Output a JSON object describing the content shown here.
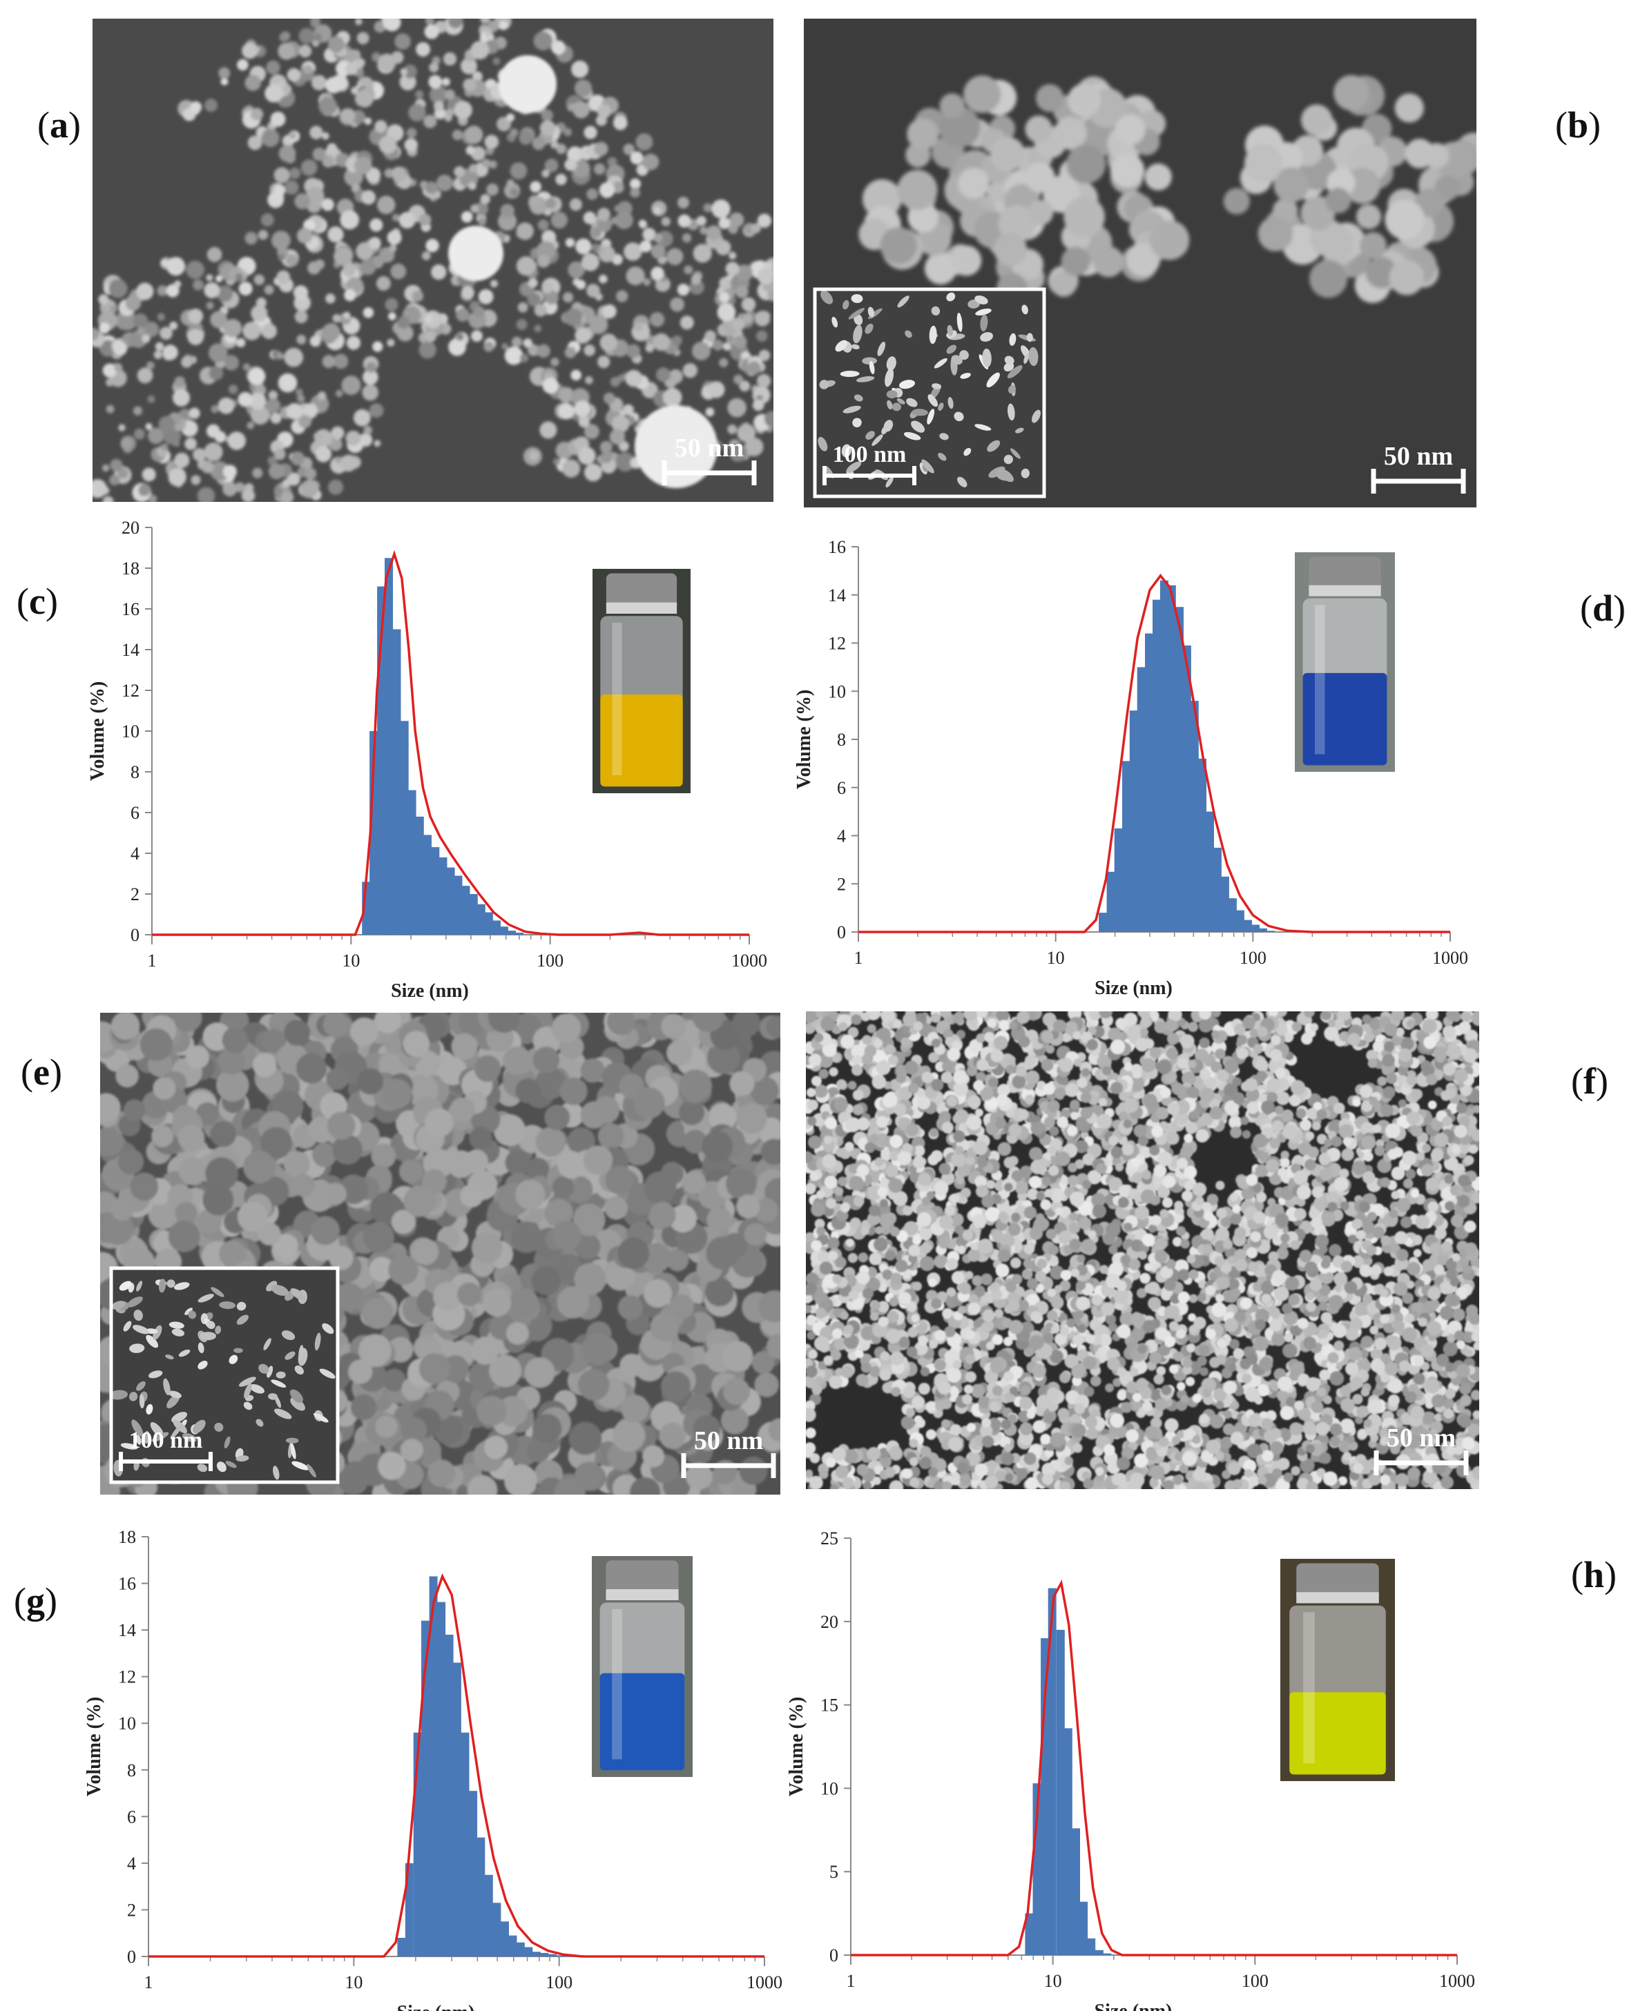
{
  "panel_labels": {
    "a": "(a)",
    "b": "(b)",
    "c": "(c)",
    "d": "(d)",
    "e": "(e)",
    "f": "(f)",
    "g": "(g)",
    "h": "(h)"
  },
  "panel_letters": {
    "a": "a",
    "b": "b",
    "c": "c",
    "d": "d",
    "e": "e",
    "f": "f",
    "g": "g",
    "h": "h"
  },
  "sem": {
    "a": {
      "scale": "50 nm",
      "inset_scale": ""
    },
    "b": {
      "scale": "50 nm",
      "inset_scale": "100 nm"
    },
    "e": {
      "scale": "50 nm",
      "inset_scale": "100 nm"
    },
    "f": {
      "scale": "50 nm",
      "inset_scale": ""
    }
  },
  "colors": {
    "bar": "#4a79b8",
    "curve": "#e02020",
    "vial_c": "#e0b000",
    "vial_d": "#1f45a8",
    "vial_g": "#1f58b8",
    "vial_h": "#c8d400"
  },
  "chart_data": [
    {
      "panel": "c",
      "type": "bar",
      "xscale": "log",
      "xlim": [
        1,
        1000
      ],
      "xticks": [
        "1",
        "10",
        "100",
        "1000"
      ],
      "ylim": [
        0,
        20
      ],
      "yticks": [
        "0",
        "2",
        "4",
        "6",
        "8",
        "10",
        "12",
        "14",
        "16",
        "18",
        "20"
      ],
      "xlabel": "Size (nm)",
      "ylabel": "Volume (%)",
      "x": [
        12,
        13.1,
        14.3,
        15.6,
        17.1,
        18.7,
        20.4,
        22.3,
        24.4,
        26.7,
        29.2,
        31.9,
        34.8,
        38,
        41.6,
        45.4,
        49.6,
        54.2,
        59.2,
        64.7,
        70.7
      ],
      "values": [
        2.6,
        10,
        17.1,
        18.5,
        15,
        10.5,
        7.1,
        5.8,
        4.9,
        4.3,
        3.8,
        3.3,
        2.9,
        2.4,
        2,
        1.5,
        1.1,
        0.7,
        0.4,
        0.2,
        0.1
      ],
      "curve": [
        [
          10.5,
          0
        ],
        [
          11.5,
          1
        ],
        [
          12.5,
          5
        ],
        [
          13.5,
          12
        ],
        [
          15,
          17.5
        ],
        [
          16.5,
          18.7
        ],
        [
          18,
          17.5
        ],
        [
          19.5,
          14
        ],
        [
          21,
          10
        ],
        [
          23,
          7.2
        ],
        [
          25,
          5.8
        ],
        [
          28,
          4.8
        ],
        [
          32,
          3.9
        ],
        [
          37,
          3
        ],
        [
          44,
          2
        ],
        [
          52,
          1.1
        ],
        [
          62,
          0.5
        ],
        [
          75,
          0.15
        ],
        [
          90,
          0.05
        ],
        [
          110,
          0
        ],
        [
          200,
          0
        ],
        [
          280,
          0.1
        ],
        [
          350,
          0
        ],
        [
          1000,
          0
        ]
      ]
    },
    {
      "panel": "d",
      "type": "bar",
      "xscale": "log",
      "xlim": [
        1,
        1000
      ],
      "xticks": [
        "1",
        "10",
        "100",
        "1000"
      ],
      "ylim": [
        0,
        16
      ],
      "yticks": [
        "0",
        "2",
        "4",
        "6",
        "8",
        "10",
        "12",
        "14",
        "16"
      ],
      "xlabel": "Size (nm)",
      "ylabel": "Volume (%)",
      "x": [
        17.5,
        19.2,
        21,
        23,
        25.1,
        27.4,
        30,
        32.8,
        35.8,
        39.1,
        42.8,
        46.7,
        51,
        55.8,
        61,
        66.6,
        72.8,
        79.5,
        86.9,
        95,
        103.8,
        113.4,
        124
      ],
      "values": [
        0.8,
        2.5,
        4.3,
        7.1,
        9.2,
        11,
        12.4,
        13.8,
        14.6,
        14.4,
        13.5,
        11.9,
        9.6,
        7.2,
        5,
        3.5,
        2.3,
        1.4,
        0.9,
        0.5,
        0.3,
        0.15,
        0.05
      ],
      "curve": [
        [
          14,
          0
        ],
        [
          16,
          0.5
        ],
        [
          18,
          2.2
        ],
        [
          20,
          5
        ],
        [
          23,
          9
        ],
        [
          26,
          12.2
        ],
        [
          30,
          14.2
        ],
        [
          34,
          14.8
        ],
        [
          38,
          14.3
        ],
        [
          43,
          12.5
        ],
        [
          49,
          10
        ],
        [
          56,
          7.2
        ],
        [
          64,
          4.8
        ],
        [
          74,
          2.8
        ],
        [
          86,
          1.5
        ],
        [
          100,
          0.7
        ],
        [
          120,
          0.25
        ],
        [
          150,
          0.05
        ],
        [
          200,
          0
        ],
        [
          1000,
          0
        ]
      ]
    },
    {
      "panel": "g",
      "type": "bar",
      "xscale": "log",
      "xlim": [
        1,
        1000
      ],
      "xticks": [
        "1",
        "10",
        "100",
        "1000"
      ],
      "ylim": [
        0,
        18
      ],
      "yticks": [
        "0",
        "2",
        "4",
        "6",
        "8",
        "10",
        "12",
        "14",
        "16",
        "18"
      ],
      "xlabel": "Size (nm)",
      "ylabel": "Volume (%)",
      "x": [
        17.2,
        18.8,
        20.6,
        22.5,
        24.6,
        26.9,
        29.4,
        32.1,
        35.1,
        38.4,
        41.9,
        45.8,
        50.1,
        54.8,
        59.9,
        65.4,
        71.5,
        78.2,
        85.4,
        93.4,
        102,
        111.5
      ],
      "values": [
        0.8,
        4,
        9.6,
        14.4,
        16.3,
        15.2,
        13.8,
        12.6,
        9.6,
        7.1,
        5.1,
        3.5,
        2.3,
        1.5,
        0.9,
        0.6,
        0.4,
        0.2,
        0.15,
        0.1,
        0.05,
        0.02
      ],
      "curve": [
        [
          14,
          0
        ],
        [
          16,
          0.6
        ],
        [
          18,
          3
        ],
        [
          20,
          7.5
        ],
        [
          22,
          12
        ],
        [
          24.5,
          15.2
        ],
        [
          27,
          16.3
        ],
        [
          30,
          15.5
        ],
        [
          33,
          13.2
        ],
        [
          37,
          10
        ],
        [
          42,
          6.8
        ],
        [
          48,
          4.2
        ],
        [
          55,
          2.4
        ],
        [
          63,
          1.3
        ],
        [
          74,
          0.6
        ],
        [
          88,
          0.25
        ],
        [
          105,
          0.08
        ],
        [
          130,
          0
        ],
        [
          1000,
          0
        ]
      ]
    },
    {
      "panel": "h",
      "type": "bar",
      "xscale": "log",
      "xlim": [
        1,
        1000
      ],
      "xticks": [
        "1",
        "10",
        "100",
        "1000"
      ],
      "ylim": [
        0,
        25
      ],
      "yticks": [
        "0",
        "5",
        "10",
        "15",
        "20",
        "25"
      ],
      "xlabel": "Size (nm)",
      "ylabel": "Volume (%)",
      "x": [
        7.7,
        8.4,
        9.2,
        10,
        11,
        12,
        13.1,
        14.3,
        15.6,
        17.1,
        18.7,
        20.4,
        22.3,
        24.4
      ],
      "values": [
        2.5,
        10.3,
        19,
        22,
        19.5,
        13.6,
        7.6,
        3.2,
        1,
        0.3,
        0.1,
        0,
        0,
        0
      ],
      "curve": [
        [
          6,
          0
        ],
        [
          6.8,
          0.5
        ],
        [
          7.5,
          2.5
        ],
        [
          8.3,
          8
        ],
        [
          9.2,
          16
        ],
        [
          10.1,
          21.5
        ],
        [
          11,
          22.3
        ],
        [
          12,
          19.8
        ],
        [
          13.1,
          14.5
        ],
        [
          14.4,
          8.5
        ],
        [
          15.8,
          4
        ],
        [
          17.5,
          1.3
        ],
        [
          19.5,
          0.3
        ],
        [
          22,
          0
        ],
        [
          1000,
          0
        ]
      ]
    }
  ]
}
